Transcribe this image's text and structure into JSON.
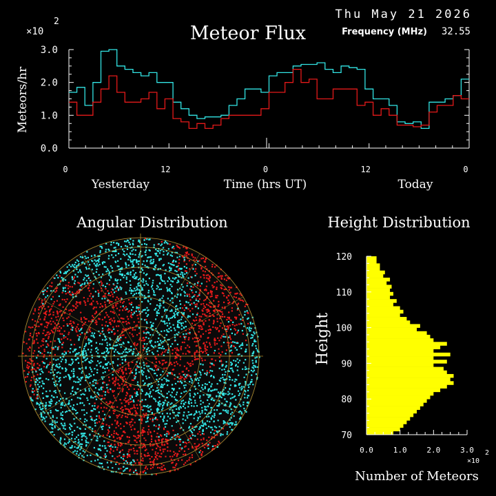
{
  "header": {
    "date": "Thu May 21 2026",
    "title": "Meteor Flux",
    "frequency_label": "Frequency (MHz)",
    "frequency_value": "32.55"
  },
  "colors": {
    "cyan": "#33e6e6",
    "red": "#e61a1a",
    "yellow": "#ffff00",
    "grid": "#c8a032"
  },
  "chart_data": [
    {
      "type": "line",
      "title": "Meteor Flux",
      "ylabel": "Meteors/hr",
      "xlabel": "Time (hrs UT)",
      "scale_exp": "2",
      "scale_label": "×10",
      "y_ticks": [
        "0.0",
        "1.0",
        "2.0",
        "3.0"
      ],
      "x_ticks": [
        "0",
        "12",
        "0",
        "12",
        "0"
      ],
      "day_labels": [
        "Yesterday",
        "Today"
      ],
      "ylim": [
        0,
        3.0
      ],
      "series": [
        {
          "color": "cyan",
          "values": [
            1.7,
            1.85,
            1.3,
            2.0,
            2.95,
            3.0,
            2.5,
            2.4,
            2.3,
            2.2,
            2.3,
            2.0,
            2.0,
            1.4,
            1.2,
            1.0,
            0.9,
            0.95,
            0.95,
            1.0,
            1.3,
            1.5,
            1.8,
            1.8,
            1.7,
            2.2,
            2.3,
            2.3,
            2.5,
            2.55,
            2.55,
            2.6,
            2.4,
            2.3,
            2.5,
            2.45,
            2.4,
            1.8,
            1.5,
            1.5,
            1.3,
            0.8,
            0.75,
            0.8,
            0.6,
            1.4,
            1.4,
            1.5,
            1.6,
            2.1
          ]
        },
        {
          "color": "red",
          "values": [
            1.4,
            1.0,
            1.0,
            1.4,
            1.8,
            2.2,
            1.7,
            1.4,
            1.4,
            1.5,
            1.7,
            1.2,
            1.5,
            0.9,
            0.8,
            0.6,
            0.75,
            0.6,
            0.7,
            0.9,
            1.0,
            1.0,
            1.0,
            1.0,
            1.2,
            1.7,
            1.7,
            2.0,
            2.4,
            2.0,
            2.1,
            1.5,
            1.5,
            1.8,
            1.8,
            1.8,
            1.3,
            1.4,
            1.0,
            1.2,
            1.0,
            0.7,
            0.7,
            0.65,
            0.7,
            1.1,
            1.3,
            1.3,
            1.6,
            1.5
          ]
        }
      ]
    },
    {
      "type": "scatter",
      "title": "Angular Distribution"
    },
    {
      "type": "bar",
      "title": "Height Distribution",
      "ylabel": "Height",
      "xlabel": "Number of Meteors",
      "scale_exp": "2",
      "scale_label": "×10",
      "y_ticks": [
        "70",
        "80",
        "90",
        "100",
        "110",
        "120"
      ],
      "x_ticks": [
        "0.0",
        "1.0",
        "2.0",
        "3.0"
      ],
      "xlim": [
        0,
        3.0
      ],
      "ylim": [
        70,
        120
      ],
      "heights": [
        70,
        71,
        72,
        73,
        74,
        75,
        76,
        77,
        78,
        79,
        80,
        81,
        82,
        83,
        84,
        85,
        86,
        87,
        88,
        89,
        90,
        91,
        92,
        93,
        94,
        95,
        96,
        97,
        98,
        99,
        100,
        101,
        102,
        103,
        104,
        105,
        106,
        107,
        108,
        109,
        110,
        111,
        112,
        113,
        114,
        115,
        116,
        117,
        118,
        119
      ],
      "values": [
        0.8,
        1.0,
        1.1,
        1.2,
        1.3,
        1.4,
        1.5,
        1.6,
        1.7,
        1.8,
        1.9,
        2.0,
        2.2,
        2.4,
        2.6,
        2.5,
        2.6,
        2.4,
        2.3,
        2.0,
        2.4,
        2.0,
        2.5,
        2.0,
        2.2,
        2.4,
        2.0,
        1.9,
        1.8,
        1.5,
        1.6,
        1.3,
        1.2,
        1.0,
        1.1,
        1.0,
        0.8,
        0.9,
        0.7,
        0.8,
        0.7,
        0.75,
        0.6,
        0.7,
        0.5,
        0.55,
        0.4,
        0.4,
        0.3,
        0.3
      ]
    }
  ]
}
